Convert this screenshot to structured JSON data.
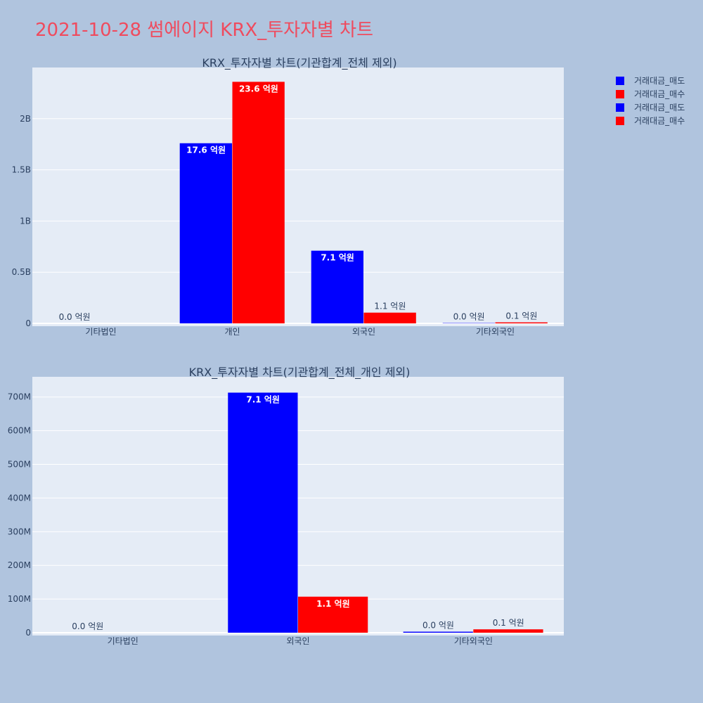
{
  "page": {
    "title": "2021-10-28 썸에이지 KRX_투자자별 차트"
  },
  "legend": [
    {
      "label": "거래대금_매도",
      "color": "#0000ff"
    },
    {
      "label": "거래대금_매수",
      "color": "#ff0000"
    },
    {
      "label": "거래대금_매도",
      "color": "#0000ff"
    },
    {
      "label": "거래대금_매수",
      "color": "#ff0000"
    }
  ],
  "chart_data": [
    {
      "type": "bar",
      "title": "KRX_투자자별 차트(기관합계_전체 제외)",
      "categories": [
        "기타법인",
        "개인",
        "외국인",
        "기타외국인"
      ],
      "ylim": [
        0,
        2500000000
      ],
      "yticks": [
        0,
        500000000,
        1000000000,
        1500000000,
        2000000000
      ],
      "ytick_labels": [
        "0",
        "0.5B",
        "1B",
        "1.5B",
        "2B"
      ],
      "grid": true,
      "series": [
        {
          "name": "거래대금_매도",
          "color": "#0000ff",
          "values": [
            0,
            1760000000,
            710000000,
            3000000
          ],
          "labels": [
            "0.0 억원",
            "17.6 억원",
            "7.1 억원",
            "0.0 억원"
          ]
        },
        {
          "name": "거래대금_매수",
          "color": "#ff0000",
          "values": [
            0,
            2360000000,
            105000000,
            10000000
          ],
          "labels": [
            "",
            "23.6 억원",
            "1.1 억원",
            "0.1 억원"
          ]
        }
      ]
    },
    {
      "type": "bar",
      "title": "KRX_투자자별 차트(기관합계_전체_개인 제외)",
      "categories": [
        "기타법인",
        "외국인",
        "기타외국인"
      ],
      "ylim": [
        0,
        760000000
      ],
      "yticks": [
        0,
        100000000,
        200000000,
        300000000,
        400000000,
        500000000,
        600000000,
        700000000
      ],
      "ytick_labels": [
        "0",
        "100M",
        "200M",
        "300M",
        "400M",
        "500M",
        "600M",
        "700M"
      ],
      "grid": true,
      "series": [
        {
          "name": "거래대금_매도",
          "color": "#0000ff",
          "values": [
            0,
            713000000,
            3000000
          ],
          "labels": [
            "0.0 억원",
            "7.1 억원",
            "0.0 억원"
          ]
        },
        {
          "name": "거래대금_매수",
          "color": "#ff0000",
          "values": [
            0,
            107000000,
            10000000
          ],
          "labels": [
            "",
            "1.1 억원",
            "0.1 억원"
          ]
        }
      ]
    }
  ]
}
